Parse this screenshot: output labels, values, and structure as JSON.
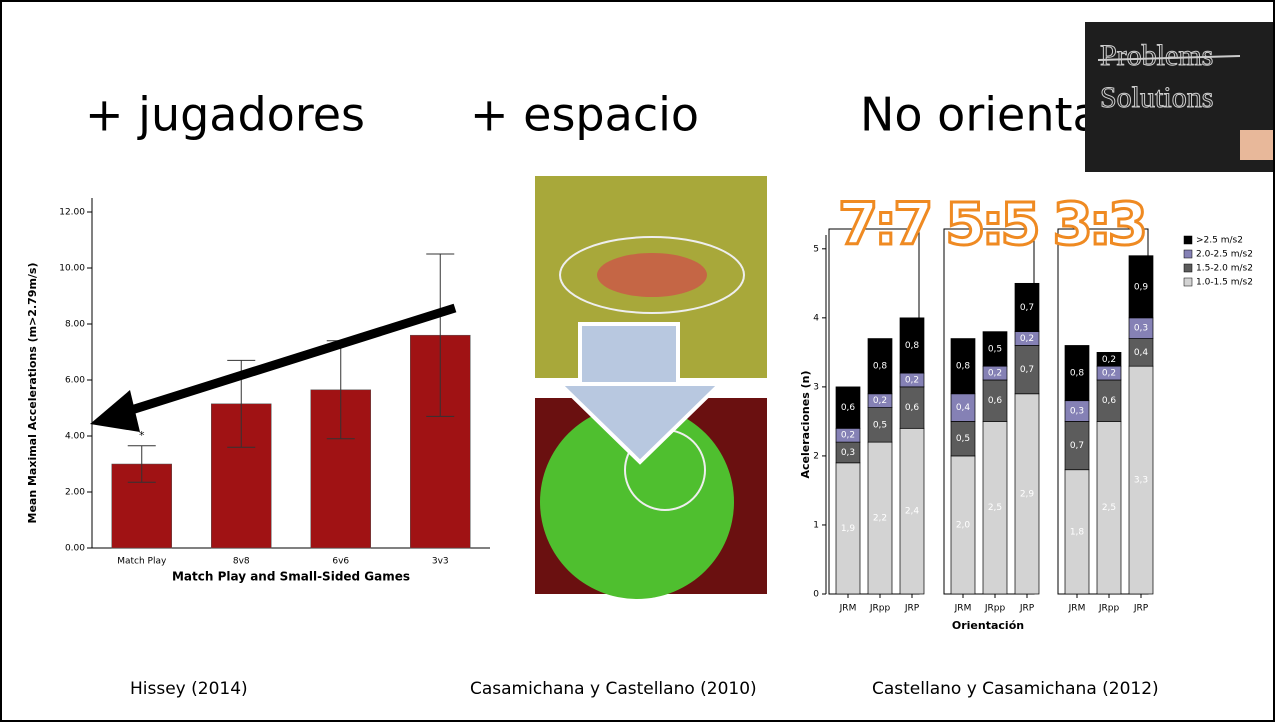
{
  "headings": [
    "+ jugadores",
    "+ espacio",
    "No orientar"
  ],
  "board": {
    "line1": "Problems",
    "line2": "Solutions"
  },
  "overlay": "7:7 5:5 3:3",
  "captions": [
    "Hissey  (2014)",
    "Casamichana y Castellano (2010)",
    "Castellano y Casamichana (2012)"
  ],
  "chart_data": [
    {
      "type": "bar",
      "x_label": "Match Play and Small-Sided Games",
      "y_label": "Mean Maximal Accelerations (m>2.79m/s)",
      "categories": [
        "Match Play",
        "8v8",
        "6v6",
        "3v3"
      ],
      "values": [
        3.0,
        5.15,
        5.65,
        7.6
      ],
      "errors": [
        0.65,
        1.55,
        1.75,
        2.9
      ],
      "color": "#a01214",
      "annotation": "*",
      "ylim": [
        0,
        12.5
      ],
      "yticks": [
        {
          "value": 0,
          "label": "0.00"
        },
        {
          "value": 2,
          "label": "2.00"
        },
        {
          "value": 4,
          "label": "4.00"
        },
        {
          "value": 6,
          "label": "6.00"
        },
        {
          "value": 8,
          "label": "8.00"
        },
        {
          "value": 10,
          "label": "10.00"
        },
        {
          "value": 12,
          "label": "12.00"
        }
      ]
    },
    {
      "type": "stacked_bar",
      "x_label": "Orientación",
      "y_label": "Aceleraciones (n)",
      "categories": [
        "JRM",
        "JRpp",
        "JRP",
        "JRM",
        "JRpp",
        "JRP",
        "JRM",
        "JRpp",
        "JRP"
      ],
      "series": [
        {
          "name": "1.0-1.5 m/s2",
          "color": "#d3d3d3",
          "values": [
            1.9,
            2.2,
            2.4,
            2.0,
            2.5,
            2.9,
            1.8,
            2.5,
            3.3
          ],
          "value_labels": [
            "1,9",
            "2,2",
            "2,4",
            "2,0",
            "2,5",
            "2,9",
            "1,8",
            "2,5",
            "3,3"
          ]
        },
        {
          "name": "1.5-2.0 m/s2",
          "color": "#5c5c5c",
          "values": [
            0.3,
            0.5,
            0.6,
            0.5,
            0.6,
            0.7,
            0.7,
            0.6,
            0.4
          ],
          "value_labels": [
            "0,3",
            "0,5",
            "0,6",
            "0,5",
            "0,6",
            "0,7",
            "0,7",
            "0,6",
            "0,4"
          ]
        },
        {
          "name": "2.0-2.5 m/s2",
          "color": "#8581b5",
          "values": [
            0.2,
            0.2,
            0.2,
            0.4,
            0.2,
            0.2,
            0.3,
            0.2,
            0.3
          ],
          "value_labels": [
            "0,2",
            "0,2",
            "0,2",
            "0,4",
            "0,2",
            "0,2",
            "0,3",
            "0,2",
            "0,3"
          ]
        },
        {
          "name": ">2.5 m/s2",
          "color": "#000000",
          "values": [
            0.6,
            0.8,
            0.8,
            0.8,
            0.5,
            0.7,
            0.8,
            0.2,
            0.9
          ],
          "value_labels": [
            "0,6",
            "0,8",
            "0,8",
            "0,8",
            "0,5",
            "0,7",
            "0,8",
            "0,2",
            "0,9"
          ]
        }
      ],
      "ylim": [
        0,
        5.2
      ],
      "yticks": [
        0,
        1,
        2,
        3,
        4,
        5
      ]
    }
  ]
}
